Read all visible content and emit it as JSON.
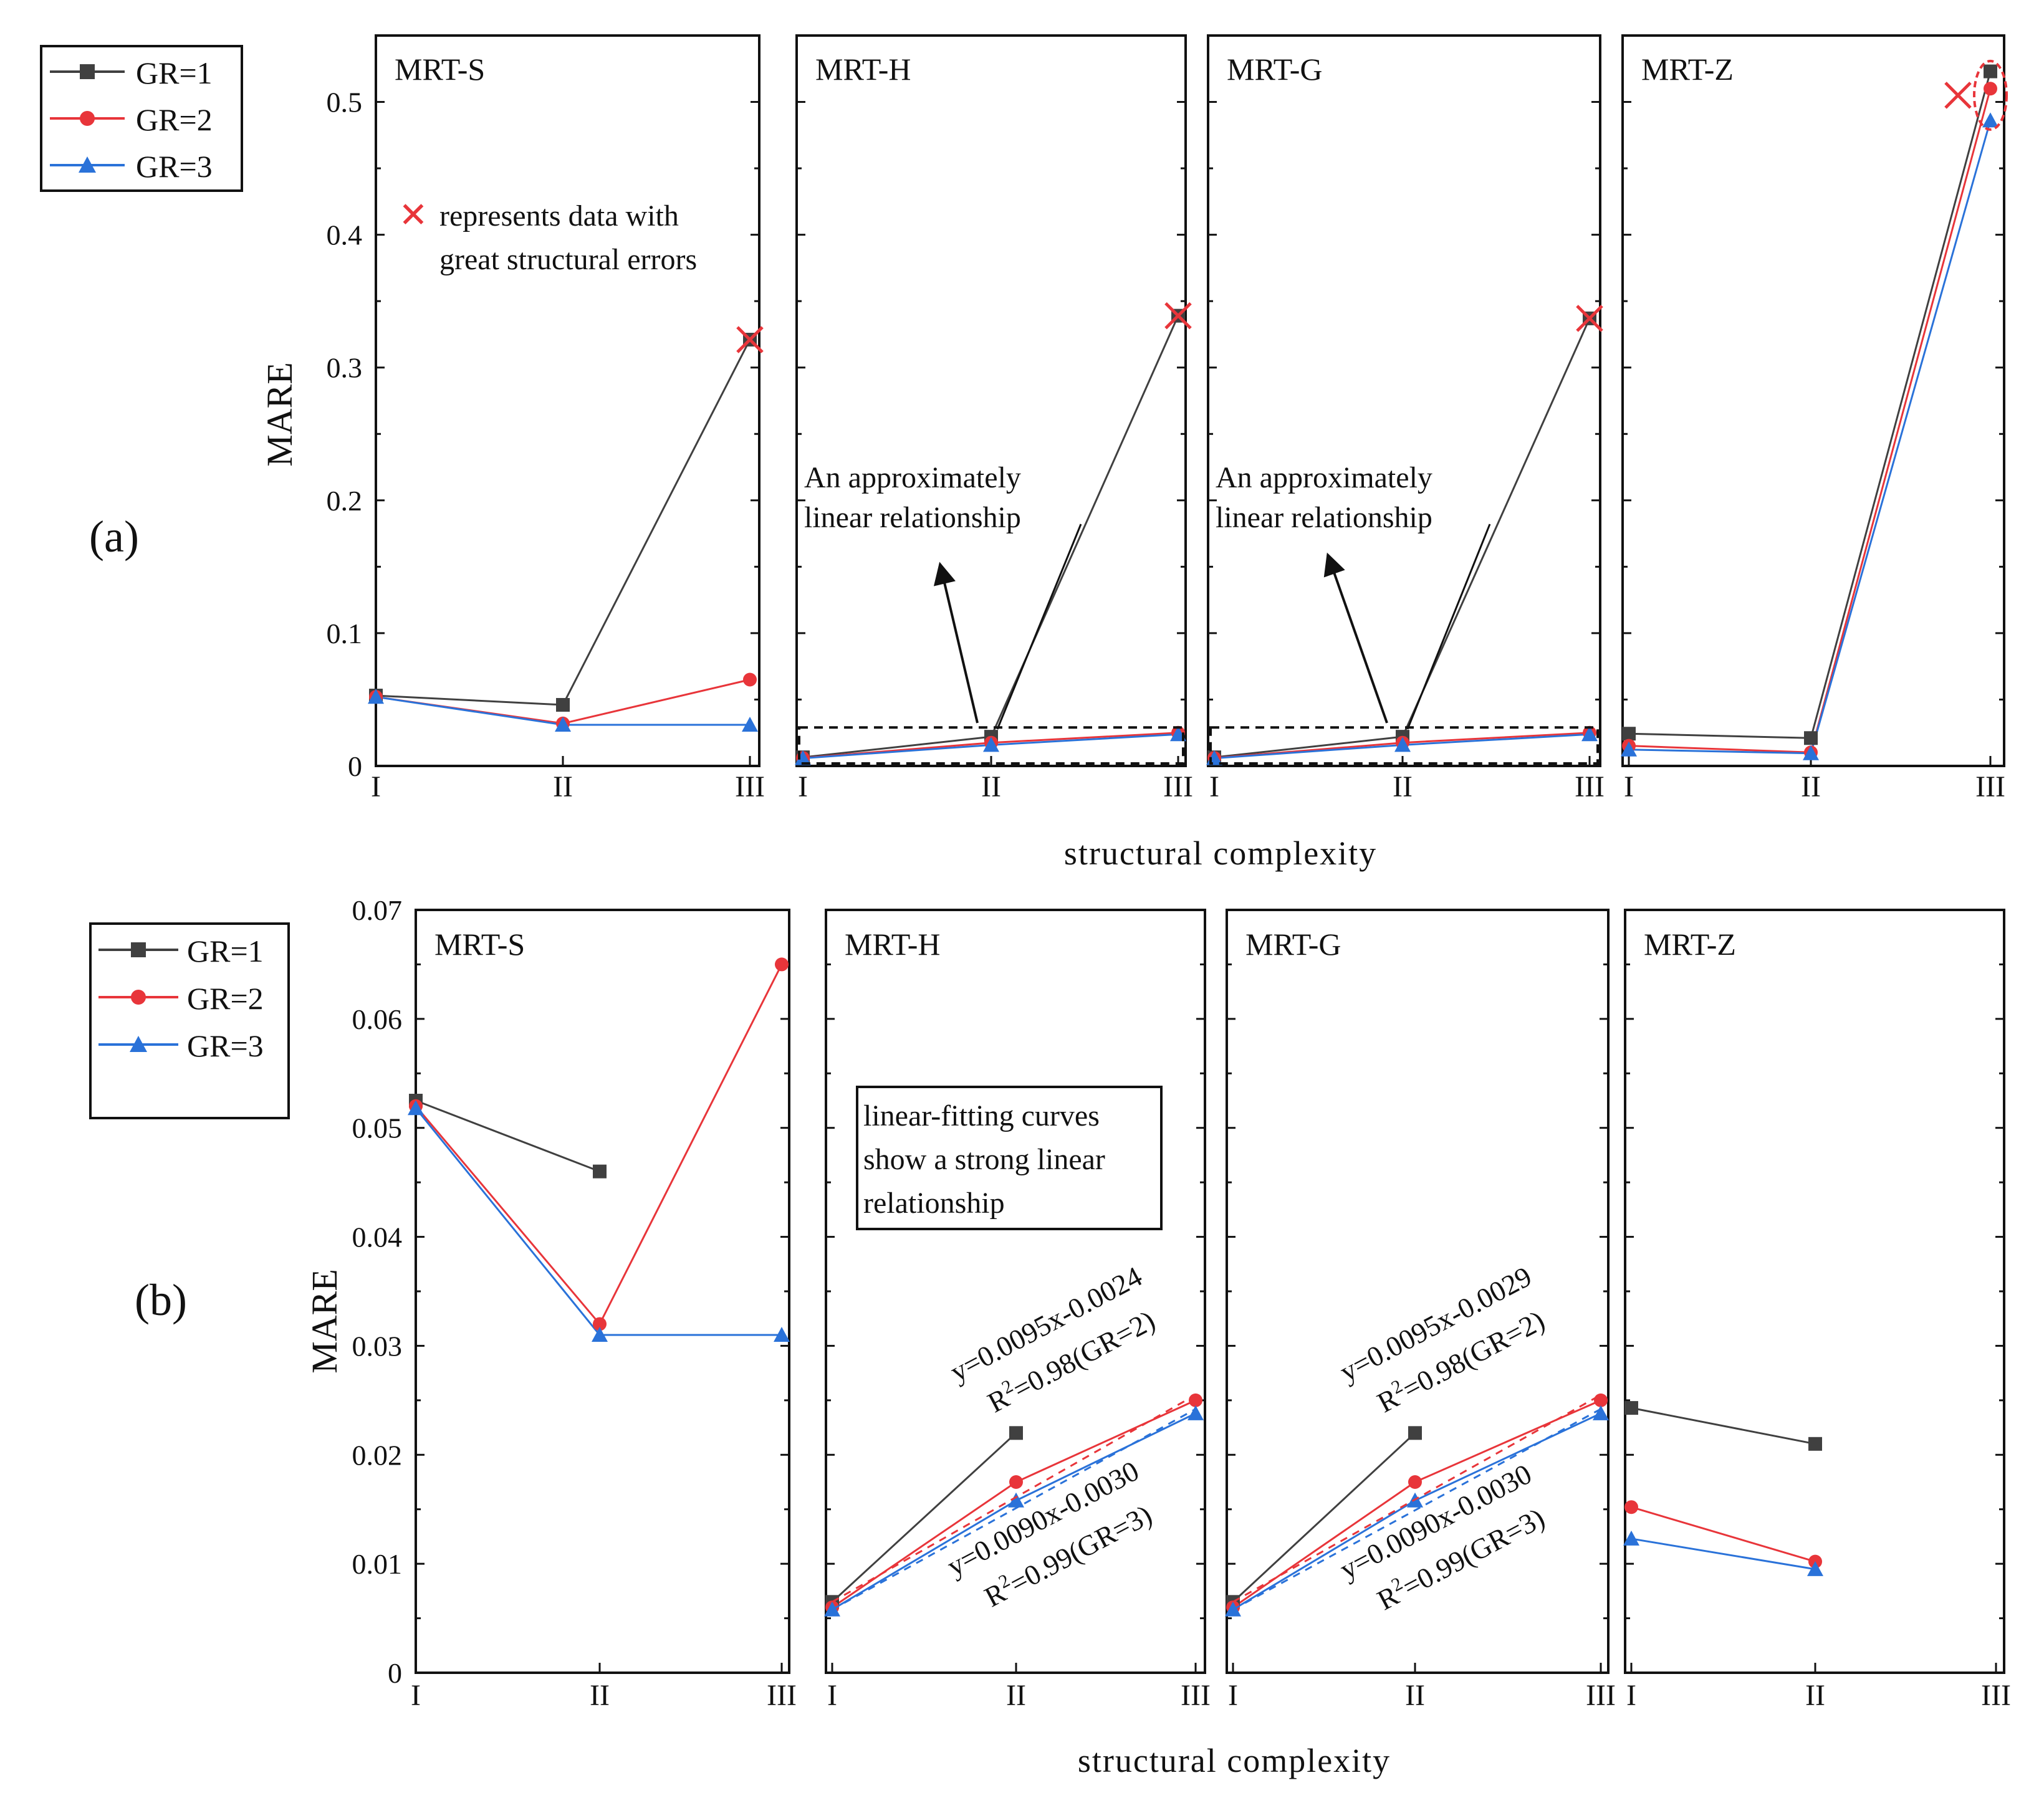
{
  "colors": {
    "gr1": "#404040",
    "gr2": "#e8353a",
    "gr3": "#2a72d9",
    "annot_red": "#e8353a",
    "axis": "#111111"
  },
  "legend": {
    "entries": [
      {
        "label": "GR=1",
        "series": "gr1",
        "marker": "square"
      },
      {
        "label": "GR=2",
        "series": "gr2",
        "marker": "circle"
      },
      {
        "label": "GR=3",
        "series": "gr3",
        "marker": "triangle"
      }
    ]
  },
  "figure_a": {
    "label": "(a)",
    "ylabel": "MARE",
    "xlabel": "structural complexity",
    "yticks": [
      "0",
      "0.1",
      "0.2",
      "0.3",
      "0.4",
      "0.5"
    ],
    "note_symbol": "✕",
    "note_line1": "represents data with",
    "note_line2": "great structural errors",
    "annot_h_line1": "An approximately",
    "annot_h_line2": "linear relationship",
    "annot_g_line1": "An approximately",
    "annot_g_line2": "linear relationship"
  },
  "figure_b": {
    "label": "(b)",
    "ylabel": "MARE",
    "xlabel": "structural complexity",
    "yticks": [
      "0",
      "0.01",
      "0.02",
      "0.03",
      "0.04",
      "0.05",
      "0.06",
      "0.07"
    ],
    "box_line1": "linear-fitting curves",
    "box_line2": "show a strong linear",
    "box_line3": "relationship",
    "fit_h_gr2_eq": "y=0.0095x-0.0024",
    "fit_h_gr2_r2": "=0.98(GR=2)",
    "fit_h_gr3_eq": "y=0.0090x-0.0030",
    "fit_h_gr3_r2": "=0.99(GR=3)",
    "fit_g_gr2_eq": "y=0.0095x-0.0029",
    "fit_g_gr2_r2": "=0.98(GR=2)",
    "fit_g_gr3_eq": "y=0.0090x-0.0030",
    "fit_g_gr3_r2": "=0.99(GR=3)",
    "r2_prefix": "R",
    "r2_sup": "2"
  },
  "chart_data": [
    {
      "type": "line",
      "title": "(a)",
      "xlabel": "structural complexity",
      "ylabel": "MARE",
      "categories": [
        "I",
        "II",
        "III"
      ],
      "ylim": [
        0,
        0.55
      ],
      "panels": [
        {
          "name": "MRT-S",
          "series": [
            {
              "name": "GR=1",
              "values": [
                0.053,
                0.046,
                0.321
              ]
            },
            {
              "name": "GR=2",
              "values": [
                0.052,
                0.032,
                0.065
              ]
            },
            {
              "name": "GR=3",
              "values": [
                0.052,
                0.031,
                0.031
              ]
            }
          ]
        },
        {
          "name": "MRT-H",
          "series": [
            {
              "name": "GR=1",
              "values": [
                0.0065,
                0.022,
                0.339
              ]
            },
            {
              "name": "GR=2",
              "values": [
                0.006,
                0.0175,
                0.025
              ]
            },
            {
              "name": "GR=3",
              "values": [
                0.0058,
                0.0158,
                0.0238
              ]
            }
          ]
        },
        {
          "name": "MRT-G",
          "series": [
            {
              "name": "GR=1",
              "values": [
                0.0065,
                0.022,
                0.337
              ]
            },
            {
              "name": "GR=2",
              "values": [
                0.006,
                0.0175,
                0.025
              ]
            },
            {
              "name": "GR=3",
              "values": [
                0.0058,
                0.0158,
                0.0238
              ]
            }
          ]
        },
        {
          "name": "MRT-Z",
          "series": [
            {
              "name": "GR=1",
              "values": [
                0.0243,
                0.021,
                0.523
              ]
            },
            {
              "name": "GR=2",
              "values": [
                0.0152,
                0.0102,
                0.51
              ]
            },
            {
              "name": "GR=3",
              "values": [
                0.0123,
                0.0095,
                0.486
              ]
            }
          ]
        }
      ]
    },
    {
      "type": "line",
      "title": "(b)",
      "xlabel": "structural complexity",
      "ylabel": "MARE",
      "categories": [
        "I",
        "II",
        "III"
      ],
      "ylim": [
        0,
        0.07
      ],
      "panels": [
        {
          "name": "MRT-S",
          "series": [
            {
              "name": "GR=1",
              "values": [
                0.0525,
                0.046,
                null
              ]
            },
            {
              "name": "GR=2",
              "values": [
                0.052,
                0.032,
                0.065
              ]
            },
            {
              "name": "GR=3",
              "values": [
                0.0518,
                0.031,
                0.031
              ]
            }
          ]
        },
        {
          "name": "MRT-H",
          "series": [
            {
              "name": "GR=1",
              "values": [
                0.0065,
                0.022,
                null
              ]
            },
            {
              "name": "GR=2",
              "values": [
                0.006,
                0.0175,
                0.025
              ]
            },
            {
              "name": "GR=3",
              "values": [
                0.0058,
                0.0158,
                0.0238
              ]
            }
          ]
        },
        {
          "name": "MRT-G",
          "series": [
            {
              "name": "GR=1",
              "values": [
                0.0065,
                0.022,
                null
              ]
            },
            {
              "name": "GR=2",
              "values": [
                0.006,
                0.0175,
                0.025
              ]
            },
            {
              "name": "GR=3",
              "values": [
                0.0058,
                0.0158,
                0.0238
              ]
            }
          ]
        },
        {
          "name": "MRT-Z",
          "series": [
            {
              "name": "GR=1",
              "values": [
                0.0243,
                0.021,
                null
              ]
            },
            {
              "name": "GR=2",
              "values": [
                0.0152,
                0.0102,
                null
              ]
            },
            {
              "name": "GR=3",
              "values": [
                0.0123,
                0.0095,
                null
              ]
            }
          ]
        }
      ]
    }
  ]
}
